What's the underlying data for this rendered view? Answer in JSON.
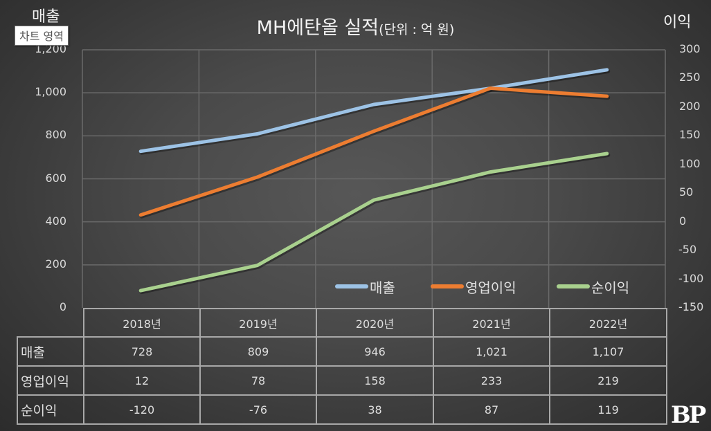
{
  "chart_data": {
    "type": "line",
    "title": "MH에탄올 실적",
    "title_unit": "(단위 : 억 원)",
    "categories": [
      "2018년",
      "2019년",
      "2020년",
      "2021년",
      "2022년"
    ],
    "y_left": {
      "label": "매출",
      "ylim": [
        0,
        1200
      ],
      "ticks": [
        "0",
        "200",
        "400",
        "600",
        "800",
        "1,000",
        "1,200"
      ],
      "tick_values": [
        0,
        200,
        400,
        600,
        800,
        1000,
        1200
      ]
    },
    "y_right": {
      "label": "이익",
      "ylim": [
        -150,
        300
      ],
      "ticks": [
        "-150",
        "-100",
        "-50",
        "0",
        "50",
        "100",
        "150",
        "200",
        "250",
        "300"
      ],
      "tick_values": [
        -150,
        -100,
        -50,
        0,
        50,
        100,
        150,
        200,
        250,
        300
      ]
    },
    "grid": true,
    "legend_position": "bottom-right-inside",
    "series": [
      {
        "name": "매출",
        "axis": "left",
        "color": "#9dc3e6",
        "values": [
          728,
          809,
          946,
          1021,
          1107
        ],
        "labels": [
          "728",
          "809",
          "946",
          "1,021",
          "1,107"
        ]
      },
      {
        "name": "영업이익",
        "axis": "right",
        "color": "#ed7d31",
        "values": [
          12,
          78,
          158,
          233,
          219
        ],
        "labels": [
          "12",
          "78",
          "158",
          "233",
          "219"
        ]
      },
      {
        "name": "순이익",
        "axis": "right",
        "color": "#a9d18e",
        "values": [
          -120,
          -76,
          38,
          87,
          119
        ],
        "labels": [
          "-120",
          "-76",
          "38",
          "87",
          "119"
        ]
      }
    ]
  },
  "tooltip": "차트 영역",
  "logo": "BP"
}
